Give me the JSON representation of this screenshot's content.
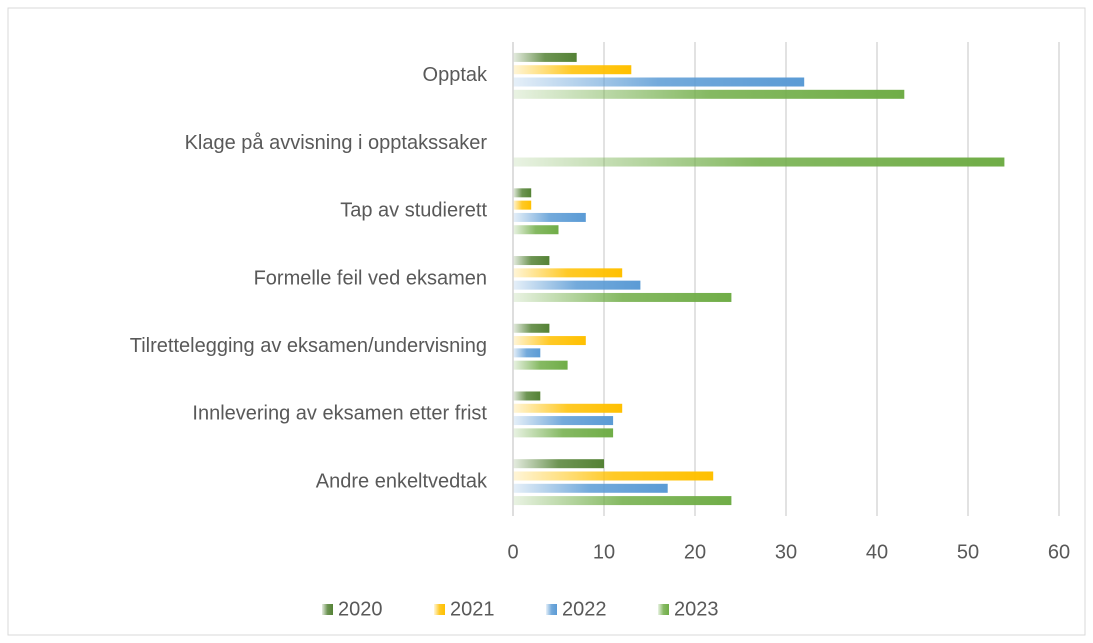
{
  "chart_data": {
    "type": "hbar",
    "categories": [
      "Opptak",
      "Klage på avvisning i opptakssaker",
      "Tap av studierett",
      "Formelle feil ved eksamen",
      "Tilrettelegging av eksamen/undervisning",
      "Innlevering av eksamen etter frist",
      "Andre enkeltvedtak"
    ],
    "series": [
      {
        "name": "2020",
        "color": "#548235",
        "values": [
          7,
          0,
          2,
          4,
          4,
          3,
          10
        ]
      },
      {
        "name": "2021",
        "color": "#ffc000",
        "values": [
          13,
          0,
          2,
          12,
          8,
          12,
          22
        ]
      },
      {
        "name": "2022",
        "color": "#5b9bd5",
        "values": [
          32,
          0,
          8,
          14,
          3,
          11,
          17
        ]
      },
      {
        "name": "2023",
        "color": "#70ad47",
        "values": [
          43,
          54,
          5,
          24,
          6,
          11,
          24
        ]
      }
    ],
    "xlim": [
      0,
      60
    ],
    "xticks": [
      0,
      10,
      20,
      30,
      40,
      50,
      60
    ],
    "grid": true,
    "legend": "bottom"
  }
}
